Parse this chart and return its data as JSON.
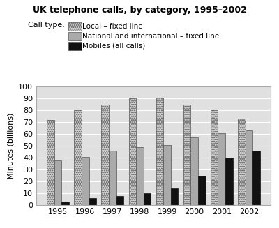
{
  "title": "UK telephone calls, by category, 1995–2002",
  "ylabel": "Minutes (billions)",
  "years": [
    1995,
    1996,
    1997,
    1998,
    1999,
    2000,
    2001,
    2002
  ],
  "local_fixed": [
    72,
    80,
    85,
    90,
    91,
    85,
    80,
    73
  ],
  "national_fixed": [
    38,
    41,
    46,
    49,
    51,
    57,
    61,
    63
  ],
  "mobiles": [
    3,
    6,
    8,
    10,
    14,
    25,
    40,
    46
  ],
  "ylim": [
    0,
    100
  ],
  "yticks": [
    0,
    10,
    20,
    30,
    40,
    50,
    60,
    70,
    80,
    90,
    100
  ],
  "legend_labels": [
    "Local – fixed line",
    "National and international – fixed line",
    "Mobiles (all calls)"
  ],
  "legend_prefix": "Call type:",
  "bar_width": 0.27,
  "color_local": "#c8c8c8",
  "color_national": "#a0a0a0",
  "color_mobiles": "#111111"
}
